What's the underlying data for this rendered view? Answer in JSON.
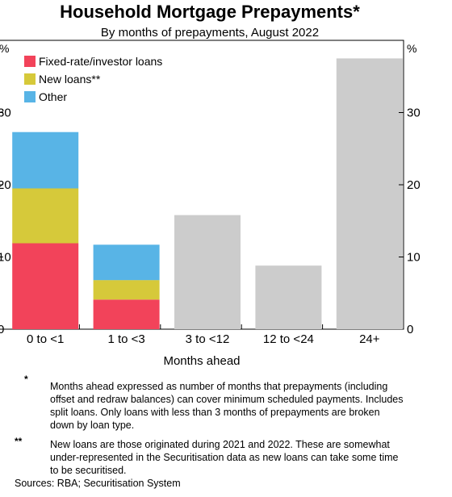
{
  "chart_data": {
    "type": "bar",
    "stacked": true,
    "title": "Household Mortgage Prepayments*",
    "subtitle": "By months of prepayments, August 2022",
    "xlabel": "Months ahead",
    "ylabel_left": "%",
    "ylabel_right": "%",
    "ylim": [
      0,
      40
    ],
    "yticks": [
      0,
      10,
      20,
      30
    ],
    "categories": [
      "0 to <1",
      "1 to <3",
      "3 to <12",
      "12 to <24",
      "24+"
    ],
    "series": [
      {
        "name": "Fixed-rate/investor loans",
        "color": "#f2435a",
        "values": [
          11.9,
          4.1,
          null,
          null,
          null
        ]
      },
      {
        "name": "New loans**",
        "color": "#d6c93a",
        "values": [
          7.6,
          2.7,
          null,
          null,
          null
        ]
      },
      {
        "name": "Other",
        "color": "#58b4e6",
        "values": [
          7.8,
          4.9,
          null,
          null,
          null
        ]
      },
      {
        "color": "#cccccc",
        "values": [
          null,
          null,
          15.8,
          8.8,
          37.5
        ]
      }
    ],
    "legend_position": "top-left",
    "grid": false
  },
  "notes": [
    {
      "marker": "*",
      "text": "Months ahead expressed as number of months that prepayments (including offset and redraw balances) can cover minimum scheduled payments. Includes split loans. Only loans with less than 3 months of prepayments are broken down by loan type."
    },
    {
      "marker": "**",
      "text": "New loans are those originated during 2021 and 2022. These are somewhat under-represented in the Securitisation data as new loans can take some time to be securitised."
    }
  ],
  "source": "Sources: RBA; Securitisation System"
}
